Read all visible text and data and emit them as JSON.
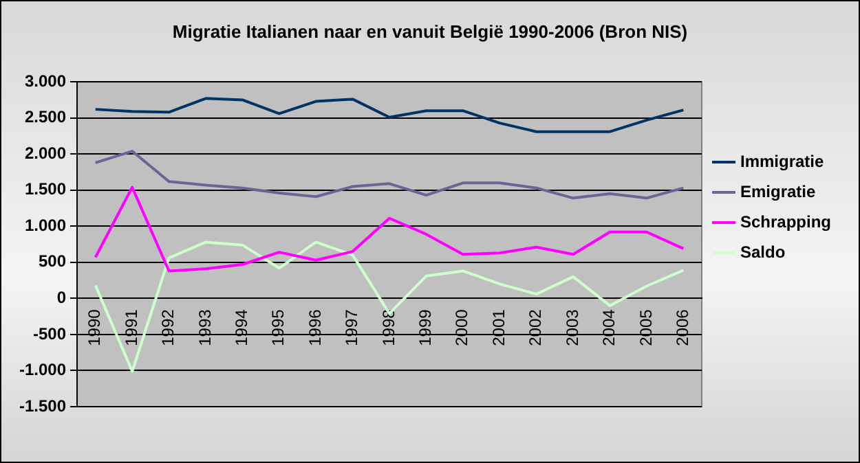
{
  "chart_data": {
    "type": "line",
    "title": "Migratie Italianen naar en vanuit België 1990-2006 (Bron NIS)",
    "categories": [
      "1990",
      "1991",
      "1992",
      "1993",
      "1994",
      "1995",
      "1996",
      "1997",
      "1998",
      "1999",
      "2000",
      "2001",
      "2002",
      "2003",
      "2004",
      "2005",
      "2006"
    ],
    "series": [
      {
        "name": "Immigratie",
        "color": "#003366",
        "values": [
          2620,
          2590,
          2580,
          2770,
          2750,
          2560,
          2730,
          2760,
          2510,
          2600,
          2600,
          2430,
          2310,
          2310,
          2310,
          2470,
          2610
        ]
      },
      {
        "name": "Emigratie",
        "color": "#666699",
        "values": [
          1880,
          2040,
          1620,
          1570,
          1530,
          1460,
          1410,
          1550,
          1590,
          1430,
          1600,
          1600,
          1530,
          1390,
          1450,
          1390,
          1530
        ]
      },
      {
        "name": "Schrapping",
        "color": "#ff00ff",
        "values": [
          570,
          1540,
          380,
          410,
          470,
          640,
          530,
          650,
          1110,
          890,
          610,
          630,
          710,
          610,
          920,
          920,
          690
        ]
      },
      {
        "name": "Saldo",
        "color": "#ccffcc",
        "values": [
          180,
          -1010,
          560,
          780,
          740,
          420,
          780,
          600,
          -210,
          310,
          380,
          200,
          60,
          300,
          -100,
          170,
          390
        ]
      }
    ],
    "ylim": [
      -1500,
      3000
    ],
    "yticks": [
      {
        "value": -1500,
        "label": "-1.500"
      },
      {
        "value": -1000,
        "label": "-1.000"
      },
      {
        "value": -500,
        "label": "-500"
      },
      0,
      {
        "value": 500,
        "label": "500"
      },
      {
        "value": 1000,
        "label": "1.000"
      },
      {
        "value": 1500,
        "label": "1.500"
      },
      {
        "value": 2000,
        "label": "2.000"
      },
      {
        "value": 2500,
        "label": "2.500"
      },
      {
        "value": 3000,
        "label": "3.000"
      }
    ],
    "grid": "y",
    "legend": "right",
    "marker": "none",
    "line_style": "solid"
  }
}
